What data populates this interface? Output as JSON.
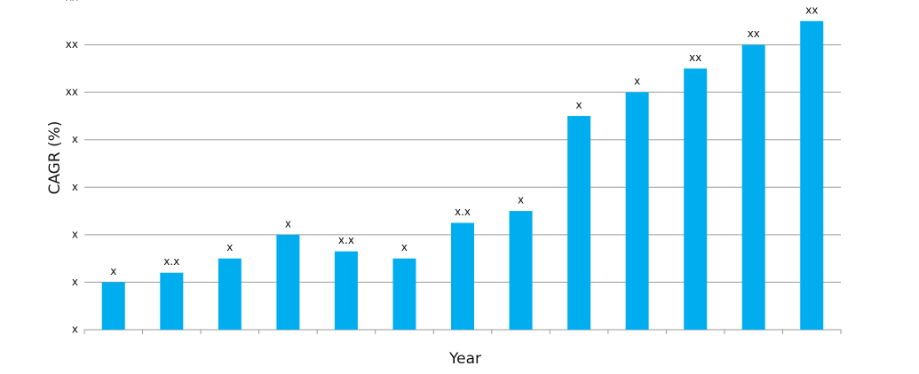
{
  "chart_data": {
    "type": "bar",
    "x_label": "Year",
    "y_label": "CAGR (%)",
    "categories": [
      null,
      null,
      null,
      null,
      null,
      null,
      null,
      null,
      null,
      null,
      null,
      null,
      null
    ],
    "values": [
      2,
      2.4,
      3,
      4,
      3.3,
      3,
      4.5,
      5,
      9,
      10,
      11,
      12,
      13
    ],
    "value_labels": [
      "x",
      "x.x",
      "x",
      "x",
      "x.x",
      "x",
      "x.x",
      "x",
      "x",
      "x",
      "xx",
      "xx",
      "xx"
    ],
    "color": "#00aeef",
    "ylim": [
      0,
      14
    ],
    "yticks": [
      {
        "value": 0,
        "label": "x"
      },
      {
        "value": 2,
        "label": "x"
      },
      {
        "value": 4,
        "label": "x"
      },
      {
        "value": 6,
        "label": "x"
      },
      {
        "value": 8,
        "label": "x"
      },
      {
        "value": 10,
        "label": "xx"
      },
      {
        "value": 12,
        "label": "xx"
      },
      {
        "value": 14,
        "label": "xx"
      }
    ],
    "grid": true
  }
}
